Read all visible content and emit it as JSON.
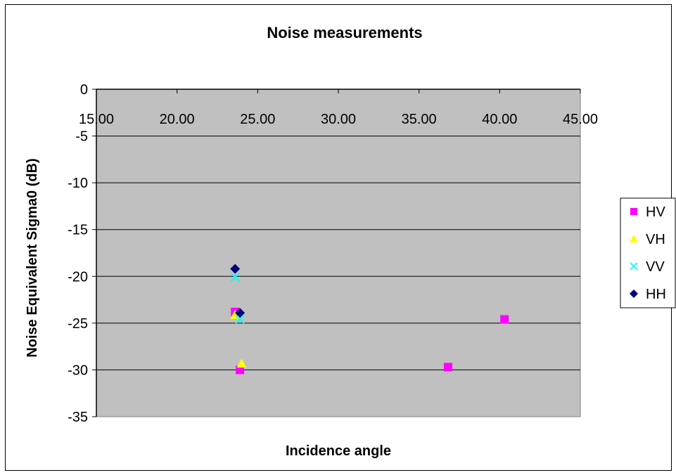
{
  "chart_data": {
    "type": "scatter",
    "title": "Noise measurements",
    "xlabel": "Incidence angle",
    "ylabel": "Noise Equivalent Sigma0 (dB)",
    "xlim": [
      15,
      45
    ],
    "ylim": [
      -35,
      0
    ],
    "xticks": [
      "15.00",
      "20.00",
      "25.00",
      "30.00",
      "35.00",
      "40.00",
      "45.00"
    ],
    "yticks": [
      "0",
      "-5",
      "-10",
      "-15",
      "-20",
      "-25",
      "-30",
      "-35"
    ],
    "grid": "horizontal",
    "legend_position": "right",
    "series": [
      {
        "name": "HV",
        "marker": "square",
        "color": "#ff00ff",
        "points": [
          {
            "x": 23.6,
            "y": -23.8
          },
          {
            "x": 23.9,
            "y": -30.0
          },
          {
            "x": 36.8,
            "y": -29.7
          },
          {
            "x": 40.3,
            "y": -24.6
          }
        ]
      },
      {
        "name": "VH",
        "marker": "triangle",
        "color": "#ffff00",
        "points": [
          {
            "x": 23.6,
            "y": -24.1
          },
          {
            "x": 24.0,
            "y": -29.3
          }
        ]
      },
      {
        "name": "VV",
        "marker": "x",
        "color": "#00ffff",
        "points": [
          {
            "x": 23.6,
            "y": -20.1
          },
          {
            "x": 23.9,
            "y": -24.6
          }
        ]
      },
      {
        "name": "HH",
        "marker": "diamond",
        "color": "#000080",
        "points": [
          {
            "x": 23.6,
            "y": -19.2
          },
          {
            "x": 23.9,
            "y": -23.9
          }
        ]
      }
    ]
  }
}
